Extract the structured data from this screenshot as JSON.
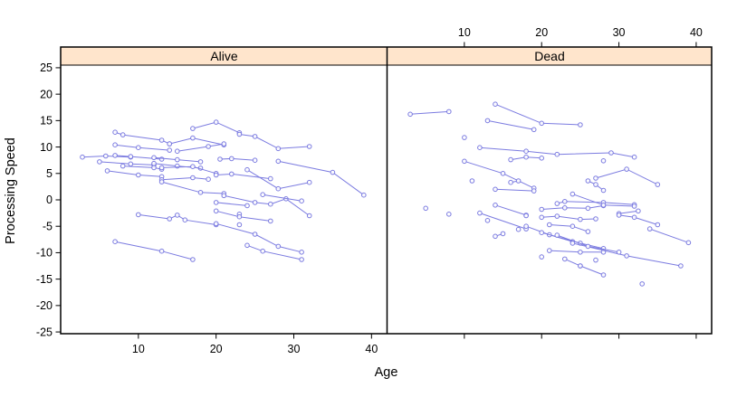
{
  "chart_data": {
    "type": "line",
    "title": "",
    "xlabel": "Age",
    "ylabel": "Processing Speed",
    "xlim": [
      0,
      42
    ],
    "ylim": [
      -25.5,
      25.5
    ],
    "x_ticks": [
      10,
      20,
      30,
      40
    ],
    "y_ticks": [
      -25,
      -20,
      -15,
      -10,
      -5,
      0,
      5,
      10,
      15,
      20,
      25
    ],
    "grid": false,
    "legend": "none",
    "style": {
      "line_color": "#7b7be0",
      "point_fill": "#ffffff",
      "strip_bg": "#ffe5cc",
      "border_color": "#000000",
      "text_color": "#000000"
    },
    "panels": [
      {
        "label": "Alive",
        "x_axis_labels": "bottom",
        "series": [
          {
            "x": [
              2.8,
              5.8,
              9
            ],
            "y": [
              8.1,
              8.3,
              8.1
            ]
          },
          {
            "x": [
              5,
              9,
              12
            ],
            "y": [
              7.2,
              6.8,
              6.6
            ]
          },
          {
            "x": [
              7,
              8,
              13,
              14
            ],
            "y": [
              12.8,
              12.3,
              11.3,
              10.6
            ]
          },
          {
            "x": [
              7,
              10,
              14
            ],
            "y": [
              10.4,
              9.9,
              9.4
            ]
          },
          {
            "x": [
              7,
              9,
              13
            ],
            "y": [
              8.4,
              8.2,
              7.7
            ]
          },
          {
            "x": [
              8,
              12,
              13
            ],
            "y": [
              6.4,
              6.1,
              5.8
            ]
          },
          {
            "x": [
              6,
              10,
              13
            ],
            "y": [
              5.5,
              4.7,
              4.4
            ]
          },
          {
            "x": [
              12,
              15,
              18
            ],
            "y": [
              6.9,
              6.4,
              6.0
            ]
          },
          {
            "x": [
              13,
              17,
              20
            ],
            "y": [
              6.1,
              6.3,
              5.0
            ]
          },
          {
            "x": [
              17,
              20,
              23
            ],
            "y": [
              13.5,
              14.7,
              12.7
            ]
          },
          {
            "x": [
              14,
              17,
              21
            ],
            "y": [
              10.6,
              11.7,
              10.4
            ]
          },
          {
            "x": [
              15,
              19,
              21
            ],
            "y": [
              9.2,
              10.1,
              10.6
            ]
          },
          {
            "x": [
              23,
              25,
              28,
              32
            ],
            "y": [
              12.4,
              12.0,
              9.7,
              10.1
            ]
          },
          {
            "x": [
              12,
              15,
              18
            ],
            "y": [
              8.0,
              7.6,
              7.2
            ]
          },
          {
            "x": [
              13,
              17,
              19
            ],
            "y": [
              3.8,
              4.2,
              3.9
            ]
          },
          {
            "x": [
              13,
              18,
              21
            ],
            "y": [
              3.4,
              1.4,
              1.2
            ]
          },
          {
            "x": [
              21,
              25,
              27,
              29,
              32
            ],
            "y": [
              0.8,
              -0.5,
              -0.8,
              0.2,
              -3.0
            ]
          },
          {
            "x": [
              20,
              24
            ],
            "y": [
              -0.5,
              -1.1
            ]
          },
          {
            "x": [
              10,
              14,
              15,
              16,
              20
            ],
            "y": [
              -2.8,
              -3.6,
              -2.9,
              -3.8,
              -4.7
            ]
          },
          {
            "x": [
              24,
              26,
              31
            ],
            "y": [
              -8.6,
              -9.7,
              -11.3
            ]
          },
          {
            "x": [
              20,
              25,
              28,
              31
            ],
            "y": [
              -4.5,
              -6.5,
              -8.8,
              -9.9
            ]
          },
          {
            "x": [
              23
            ],
            "y": [
              -2.7
            ]
          },
          {
            "x": [
              23
            ],
            "y": [
              -4.7
            ]
          },
          {
            "x": [
              20,
              23,
              27
            ],
            "y": [
              -2.1,
              -3.2,
              -4.0
            ]
          },
          {
            "x": [
              28,
              35,
              39
            ],
            "y": [
              7.3,
              5.2,
              0.9
            ]
          },
          {
            "x": [
              20.5,
              22,
              25
            ],
            "y": [
              7.7,
              7.8,
              7.5
            ]
          },
          {
            "x": [
              24,
              28,
              32
            ],
            "y": [
              5.7,
              2.1,
              3.3
            ]
          },
          {
            "x": [
              20,
              22,
              27
            ],
            "y": [
              4.7,
              4.9,
              4.0
            ]
          },
          {
            "x": [
              7,
              13,
              17
            ],
            "y": [
              -7.9,
              -9.7,
              -11.3
            ]
          },
          {
            "x": [
              26,
              31
            ],
            "y": [
              1.0,
              -0.2
            ]
          }
        ]
      },
      {
        "label": "Dead",
        "x_axis_labels": "top",
        "series": [
          {
            "x": [
              3,
              8
            ],
            "y": [
              16.2,
              16.7
            ]
          },
          {
            "x": [
              14,
              20,
              25
            ],
            "y": [
              18.1,
              14.5,
              14.2
            ]
          },
          {
            "x": [
              13,
              19
            ],
            "y": [
              15.0,
              13.3
            ]
          },
          {
            "x": [
              10
            ],
            "y": [
              11.8
            ]
          },
          {
            "x": [
              12,
              18,
              22,
              29,
              32
            ],
            "y": [
              9.9,
              9.2,
              8.6,
              8.9,
              8.1
            ]
          },
          {
            "x": [
              10,
              15,
              19
            ],
            "y": [
              7.3,
              5.0,
              2.2
            ]
          },
          {
            "x": [
              16,
              18,
              20
            ],
            "y": [
              7.6,
              8.1,
              7.9
            ]
          },
          {
            "x": [
              28
            ],
            "y": [
              7.4
            ]
          },
          {
            "x": [
              11
            ],
            "y": [
              3.6
            ]
          },
          {
            "x": [
              16,
              17
            ],
            "y": [
              3.3,
              3.6
            ]
          },
          {
            "x": [
              14,
              19
            ],
            "y": [
              2.0,
              1.7
            ]
          },
          {
            "x": [
              27,
              31,
              35
            ],
            "y": [
              4.1,
              5.8,
              2.9
            ]
          },
          {
            "x": [
              26,
              27,
              28
            ],
            "y": [
              3.6,
              2.9,
              1.8
            ]
          },
          {
            "x": [
              8
            ],
            "y": [
              -2.7
            ]
          },
          {
            "x": [
              12,
              18
            ],
            "y": [
              -2.5,
              -5.5
            ]
          },
          {
            "x": [
              13
            ],
            "y": [
              -3.9
            ]
          },
          {
            "x": [
              14,
              18
            ],
            "y": [
              -1.0,
              -2.9
            ]
          },
          {
            "x": [
              20,
              23,
              26,
              28
            ],
            "y": [
              -1.8,
              -1.5,
              -1.6,
              -1.1
            ]
          },
          {
            "x": [
              20,
              22,
              25,
              27
            ],
            "y": [
              -3.3,
              -3.1,
              -3.7,
              -3.6
            ]
          },
          {
            "x": [
              21,
              24,
              26
            ],
            "y": [
              -4.7,
              -5.0,
              -6.0
            ]
          },
          {
            "x": [
              18
            ],
            "y": [
              -3.0
            ]
          },
          {
            "x": [
              17
            ],
            "y": [
              -5.6
            ]
          },
          {
            "x": [
              18,
              21,
              24
            ],
            "y": [
              -5.0,
              -6.6,
              -7.9
            ]
          },
          {
            "x": [
              20,
              25,
              28
            ],
            "y": [
              -6.2,
              -8.2,
              -9.2
            ]
          },
          {
            "x": [
              14,
              15
            ],
            "y": [
              -6.9,
              -6.4
            ]
          },
          {
            "x": [
              21,
              25,
              28
            ],
            "y": [
              -9.6,
              -9.9,
              -9.9
            ]
          },
          {
            "x": [
              20
            ],
            "y": [
              -10.8
            ]
          },
          {
            "x": [
              23,
              25
            ],
            "y": [
              -11.2,
              -12.5
            ]
          },
          {
            "x": [
              27
            ],
            "y": [
              -11.4
            ]
          },
          {
            "x": [
              22,
              23,
              28,
              32
            ],
            "y": [
              -0.7,
              -0.3,
              -0.5,
              -0.9
            ]
          },
          {
            "x": [
              24,
              28,
              32
            ],
            "y": [
              1.1,
              -1.0,
              -1.2
            ]
          },
          {
            "x": [
              30,
              32.5
            ],
            "y": [
              -2.6,
              -2.1
            ]
          },
          {
            "x": [
              30,
              32,
              35
            ],
            "y": [
              -2.9,
              -3.3,
              -4.7
            ]
          },
          {
            "x": [
              34,
              39
            ],
            "y": [
              -5.5,
              -8.1
            ]
          },
          {
            "x": [
              24,
              31,
              38
            ],
            "y": [
              -8.2,
              -10.6,
              -12.5
            ]
          },
          {
            "x": [
              25,
              28
            ],
            "y": [
              -12.5,
              -14.2
            ]
          },
          {
            "x": [
              33
            ],
            "y": [
              -15.9
            ]
          },
          {
            "x": [
              5
            ],
            "y": [
              -1.6
            ]
          },
          {
            "x": [
              22,
              26,
              30
            ],
            "y": [
              -6.7,
              -8.8,
              -9.9
            ]
          }
        ]
      }
    ]
  }
}
